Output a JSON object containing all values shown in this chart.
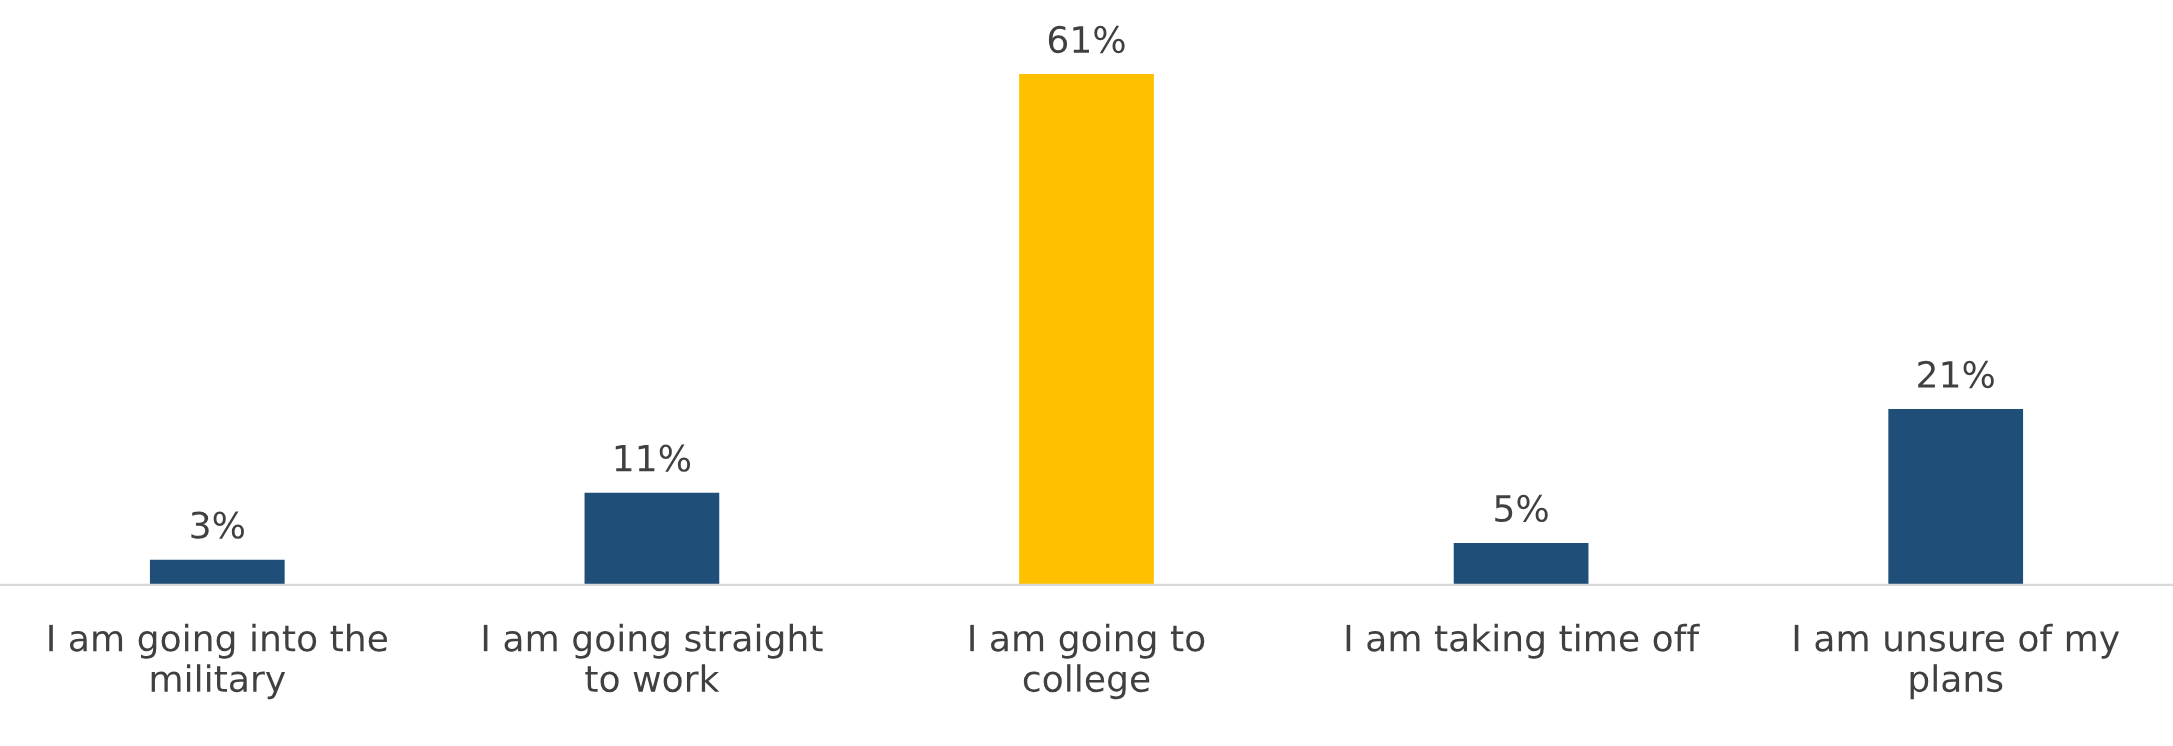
{
  "chart_data": {
    "type": "bar",
    "categories": [
      "I am going into the\nmilitary",
      "I am going straight\nto work",
      "I am going to\ncollege",
      "I am taking time off",
      "I am unsure of my\nplans"
    ],
    "values": [
      3,
      11,
      61,
      5,
      21
    ],
    "colors": [
      "#1f4e79",
      "#1f4e79",
      "#ffc000",
      "#1f4e79",
      "#1f4e79"
    ],
    "value_labels": [
      "3%",
      "11%",
      "61%",
      "5%",
      "21%"
    ],
    "grid": false,
    "legend": false
  }
}
